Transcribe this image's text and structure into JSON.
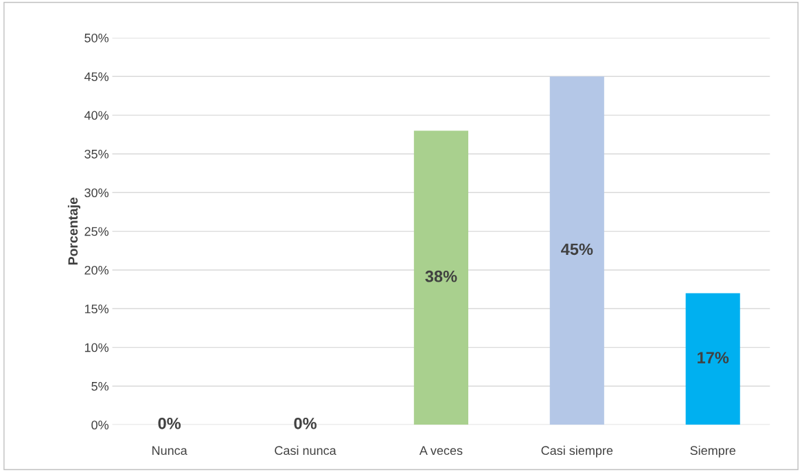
{
  "chart_data": {
    "type": "bar",
    "ylabel": "Porcentaje",
    "categories": [
      "Nunca",
      "Casi nunca",
      "A veces",
      "Casi siempre",
      "Siempre"
    ],
    "values": [
      0,
      0,
      38,
      45,
      17
    ],
    "colors": [
      "#c8c800",
      "#c09000",
      "#a9d08e",
      "#b4c7e7",
      "#00b0f0"
    ],
    "value_labels": [
      "0%",
      "0%",
      "38%",
      "45%",
      "17%"
    ],
    "ylim": [
      0,
      50
    ],
    "yticks": [
      {
        "value": 0,
        "label": "0%"
      },
      {
        "value": 5,
        "label": "5%"
      },
      {
        "value": 10,
        "label": "10%"
      },
      {
        "value": 15,
        "label": "15%"
      },
      {
        "value": 20,
        "label": "20%"
      },
      {
        "value": 25,
        "label": "25%"
      },
      {
        "value": 30,
        "label": "30%"
      },
      {
        "value": 35,
        "label": "35%"
      },
      {
        "value": 40,
        "label": "40%"
      },
      {
        "value": 45,
        "label": "45%"
      },
      {
        "value": 50,
        "label": "50%"
      }
    ],
    "grid": "y",
    "legend": false
  }
}
